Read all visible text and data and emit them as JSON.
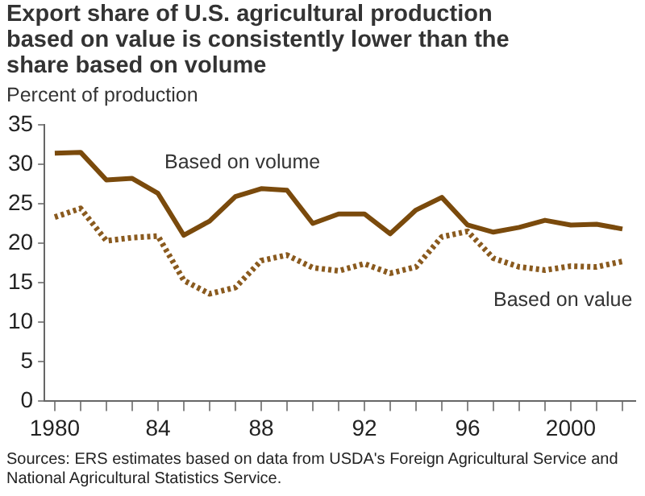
{
  "chart_data": {
    "type": "line",
    "title": "Export share of U.S. agricultural production based on value is consistently lower than the share based on volume",
    "ylabel": "Percent of production",
    "x": [
      1980,
      1981,
      1982,
      1983,
      1984,
      1985,
      1986,
      1987,
      1988,
      1989,
      1990,
      1991,
      1992,
      1993,
      1994,
      1995,
      1996,
      1997,
      1998,
      1999,
      2000,
      2001,
      2002
    ],
    "series": [
      {
        "name": "Based on volume",
        "color": "#7a4a0c",
        "line_style": "solid",
        "values": [
          31.4,
          31.5,
          28,
          28.2,
          26.3,
          21,
          22.8,
          25.9,
          26.9,
          26.7,
          22.5,
          23.7,
          23.7,
          21.2,
          24.2,
          25.8,
          22.3,
          21.4,
          22,
          22.9,
          22.3,
          22.4,
          21.8
        ]
      },
      {
        "name": "Based on value",
        "color": "#8a5a1e",
        "line_style": "dotted",
        "values": [
          23.3,
          24.4,
          20.3,
          20.7,
          20.9,
          15.3,
          13.6,
          14.4,
          17.8,
          18.5,
          16.9,
          16.5,
          17.4,
          16.2,
          17,
          20.8,
          21.5,
          18.1,
          17,
          16.6,
          17.1,
          17,
          17.7
        ]
      }
    ],
    "xlim": [
      1979.6,
      2002.5
    ],
    "xticks": [
      {
        "value": 1980,
        "label": "1980"
      },
      {
        "value": 1981,
        "label": null
      },
      {
        "value": 1982,
        "label": null
      },
      {
        "value": 1983,
        "label": null
      },
      {
        "value": 1984,
        "label": "84"
      },
      {
        "value": 1985,
        "label": null
      },
      {
        "value": 1986,
        "label": null
      },
      {
        "value": 1987,
        "label": null
      },
      {
        "value": 1988,
        "label": "88"
      },
      {
        "value": 1989,
        "label": null
      },
      {
        "value": 1990,
        "label": null
      },
      {
        "value": 1991,
        "label": null
      },
      {
        "value": 1992,
        "label": "92"
      },
      {
        "value": 1993,
        "label": null
      },
      {
        "value": 1994,
        "label": null
      },
      {
        "value": 1995,
        "label": null
      },
      {
        "value": 1996,
        "label": "96"
      },
      {
        "value": 1997,
        "label": null
      },
      {
        "value": 1998,
        "label": null
      },
      {
        "value": 1999,
        "label": null
      },
      {
        "value": 2000,
        "label": "2000"
      },
      {
        "value": 2001,
        "label": null
      },
      {
        "value": 2002,
        "label": null
      }
    ],
    "ylim": [
      0,
      35
    ],
    "yticks": [
      0,
      5,
      10,
      15,
      20,
      25,
      30,
      35
    ],
    "grid": false,
    "legend": false,
    "marker": "none",
    "annotations": [
      "Sources: ERS estimates based on data from USDA's Foreign Agricultural Service and National Agricultural Statistics Service."
    ]
  }
}
